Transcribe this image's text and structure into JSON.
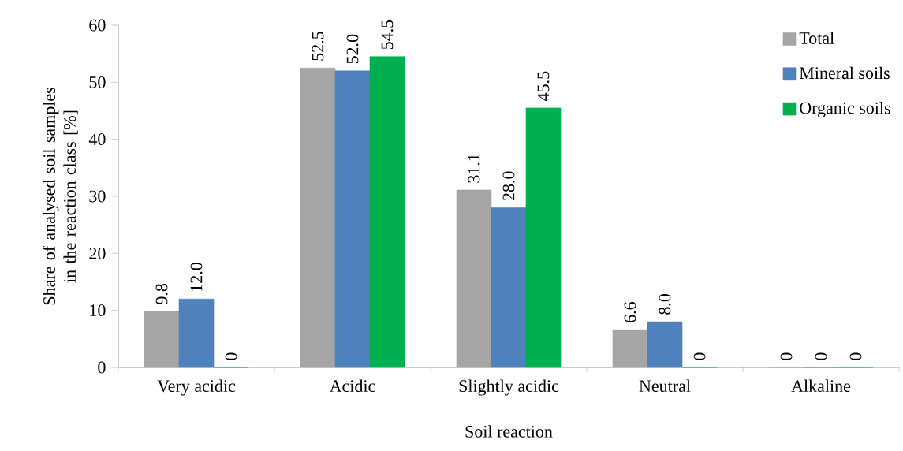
{
  "chart_data": {
    "type": "bar",
    "xlabel": "Soil reaction",
    "ylabel": "Share of analysed soil samples in the reaction class [%]",
    "categories": [
      "Very acidic",
      "Acidic",
      "Slightly acidic",
      "Neutral",
      "Alkaline"
    ],
    "series": [
      {
        "name": "Total",
        "color": "#a5a5a5",
        "values": [
          9.8,
          52.5,
          31.1,
          6.6,
          0
        ],
        "value_labels": [
          "9.8",
          "52.5",
          "31.1",
          "6.6",
          "0"
        ]
      },
      {
        "name": "Mineral soils",
        "color": "#4f81bd",
        "values": [
          12.0,
          52.0,
          28.0,
          8.0,
          0
        ],
        "value_labels": [
          "12.0",
          "52.0",
          "28.0",
          "8.0",
          "0"
        ]
      },
      {
        "name": "Organic soils",
        "color": "#00b050",
        "values": [
          0,
          54.5,
          45.5,
          0,
          0
        ],
        "value_labels": [
          "0",
          "54.5",
          "45.5",
          "0",
          "0"
        ]
      }
    ],
    "ylim": [
      0,
      60
    ],
    "yticks": [
      0,
      10,
      20,
      30,
      40,
      50,
      60
    ],
    "grid": false,
    "legend": "top right"
  }
}
